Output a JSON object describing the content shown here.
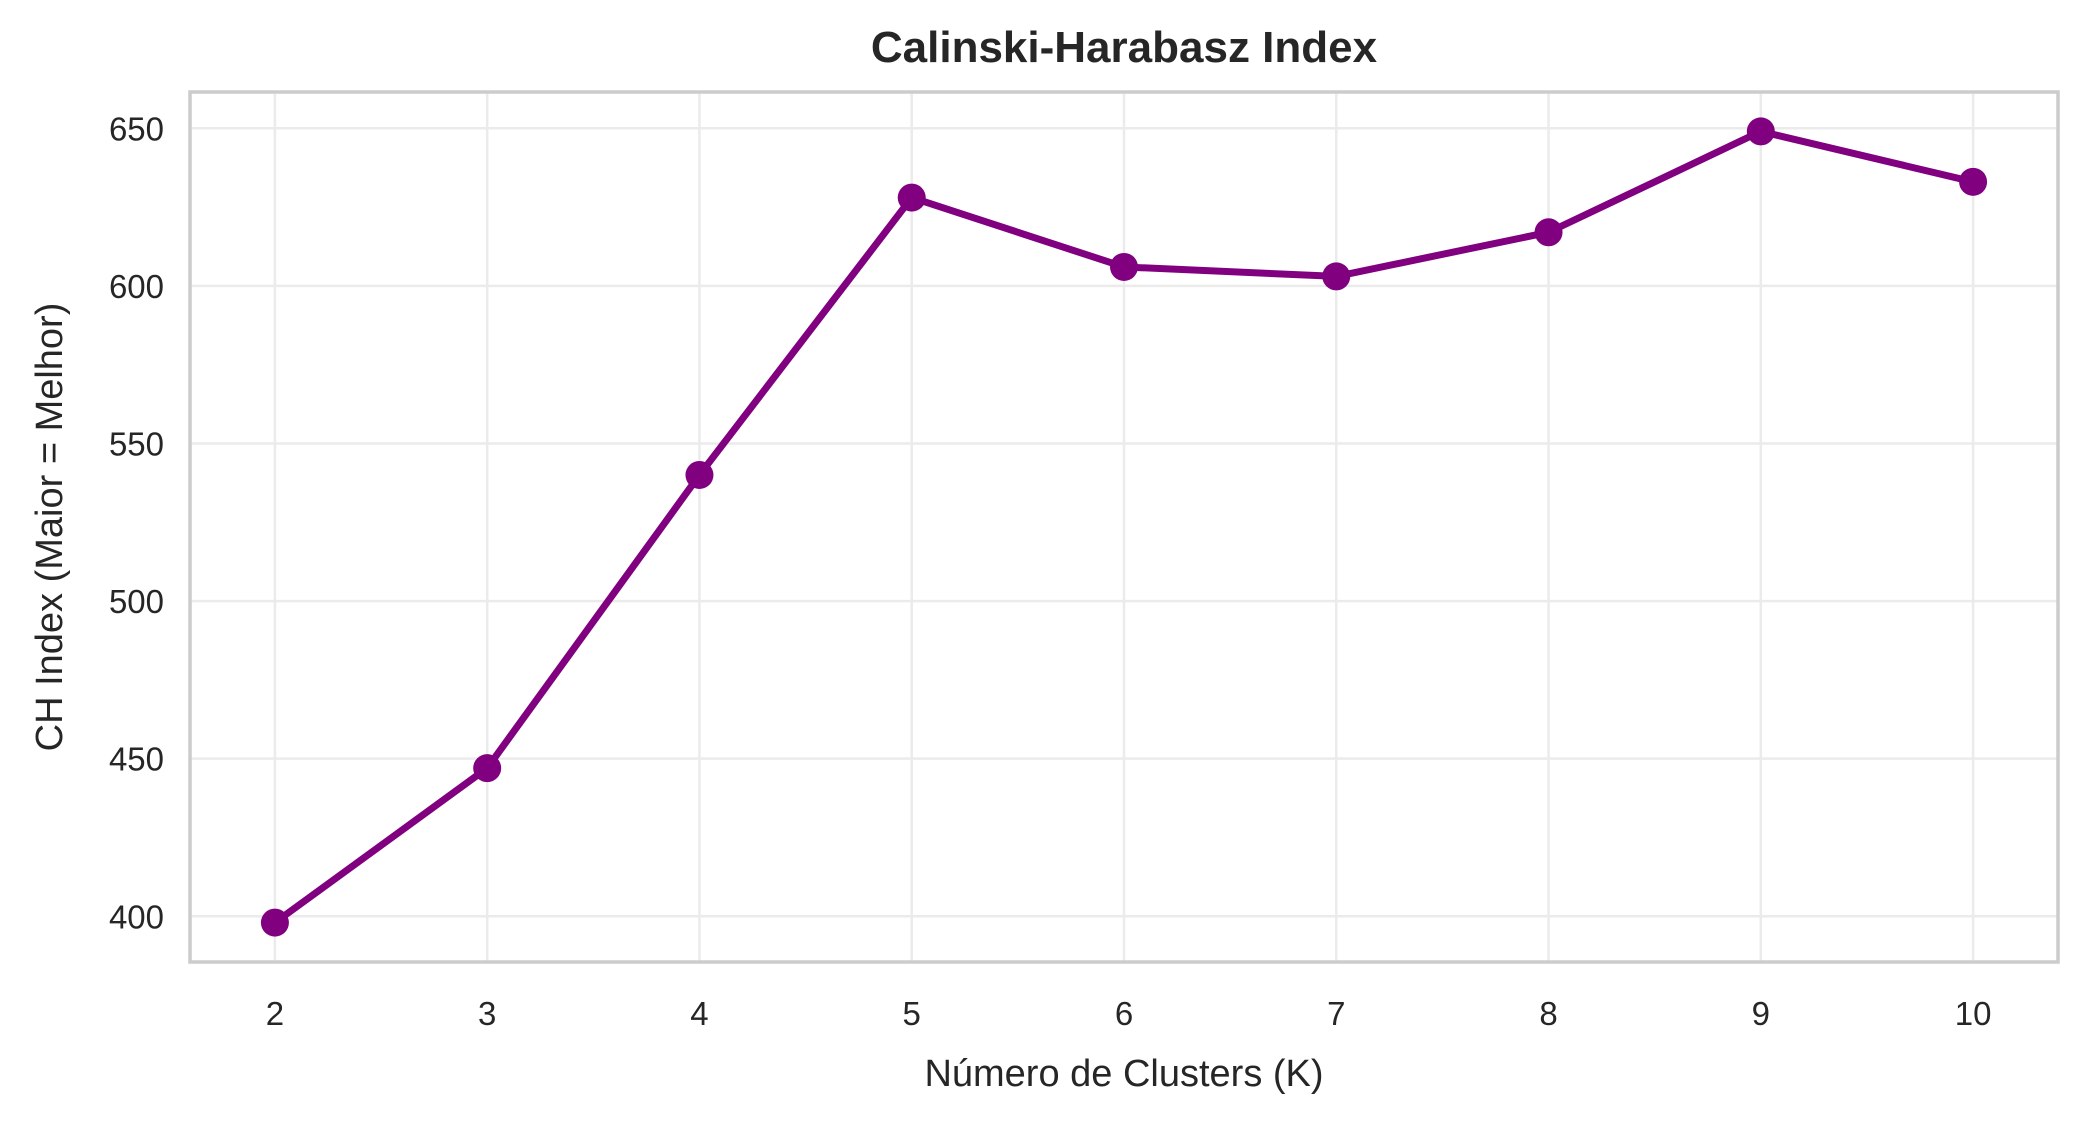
{
  "colors": {
    "series": "#800080",
    "grid": "#ebebeb",
    "frame": "#cccccc",
    "text": "#262626"
  },
  "chart_data": {
    "type": "line",
    "title": "Calinski-Harabasz Index",
    "xlabel": "Número de Clusters (K)",
    "ylabel": "CH Index (Maior = Melhor)",
    "x": [
      2,
      3,
      4,
      5,
      6,
      7,
      8,
      9,
      10
    ],
    "series": [
      {
        "values": [
          398,
          447,
          540,
          628,
          606,
          603,
          617,
          649,
          633
        ],
        "marker": "circle",
        "color": "#800080"
      }
    ],
    "xticks": [
      2,
      3,
      4,
      5,
      6,
      7,
      8,
      9,
      10
    ],
    "yticks": [
      400,
      450,
      500,
      550,
      600,
      650
    ],
    "xlim": [
      1.6,
      10.4
    ],
    "ylim": [
      385.5,
      661.5
    ],
    "grid": true,
    "legend": false
  }
}
